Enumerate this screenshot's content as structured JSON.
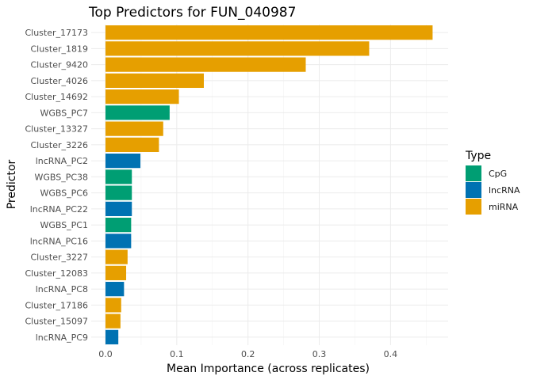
{
  "chart_data": {
    "type": "bar",
    "orientation": "horizontal",
    "title": "Top Predictors for FUN_040987",
    "xlabel": "Mean Importance (across replicates)",
    "ylabel": "Predictor",
    "xlim": [
      0,
      0.47
    ],
    "x_ticks": [
      0.0,
      0.1,
      0.2,
      0.3,
      0.4
    ],
    "x_tick_labels": [
      "0.0",
      "0.1",
      "0.2",
      "0.3",
      "0.4"
    ],
    "grid": true,
    "legend": {
      "title": "Type",
      "placement": "right",
      "entries": [
        {
          "label": "CpG",
          "color": "#009E73"
        },
        {
          "label": "lncRNA",
          "color": "#0072B2"
        },
        {
          "label": "miRNA",
          "color": "#E69F00"
        }
      ]
    },
    "categories": [
      "Cluster_17173",
      "Cluster_1819",
      "Cluster_9420",
      "Cluster_4026",
      "Cluster_14692",
      "WGBS_PC7",
      "Cluster_13327",
      "Cluster_3226",
      "lncRNA_PC2",
      "WGBS_PC38",
      "WGBS_PC6",
      "lncRNA_PC22",
      "WGBS_PC1",
      "lncRNA_PC16",
      "Cluster_3227",
      "Cluster_12083",
      "lncRNA_PC8",
      "Cluster_17186",
      "Cluster_15097",
      "lncRNA_PC9"
    ],
    "values": [
      0.459,
      0.37,
      0.281,
      0.138,
      0.103,
      0.09,
      0.081,
      0.075,
      0.049,
      0.037,
      0.037,
      0.037,
      0.036,
      0.036,
      0.031,
      0.029,
      0.026,
      0.022,
      0.021,
      0.018
    ],
    "types": [
      "miRNA",
      "miRNA",
      "miRNA",
      "miRNA",
      "miRNA",
      "CpG",
      "miRNA",
      "miRNA",
      "lncRNA",
      "CpG",
      "CpG",
      "lncRNA",
      "CpG",
      "lncRNA",
      "miRNA",
      "miRNA",
      "lncRNA",
      "miRNA",
      "miRNA",
      "lncRNA"
    ]
  }
}
